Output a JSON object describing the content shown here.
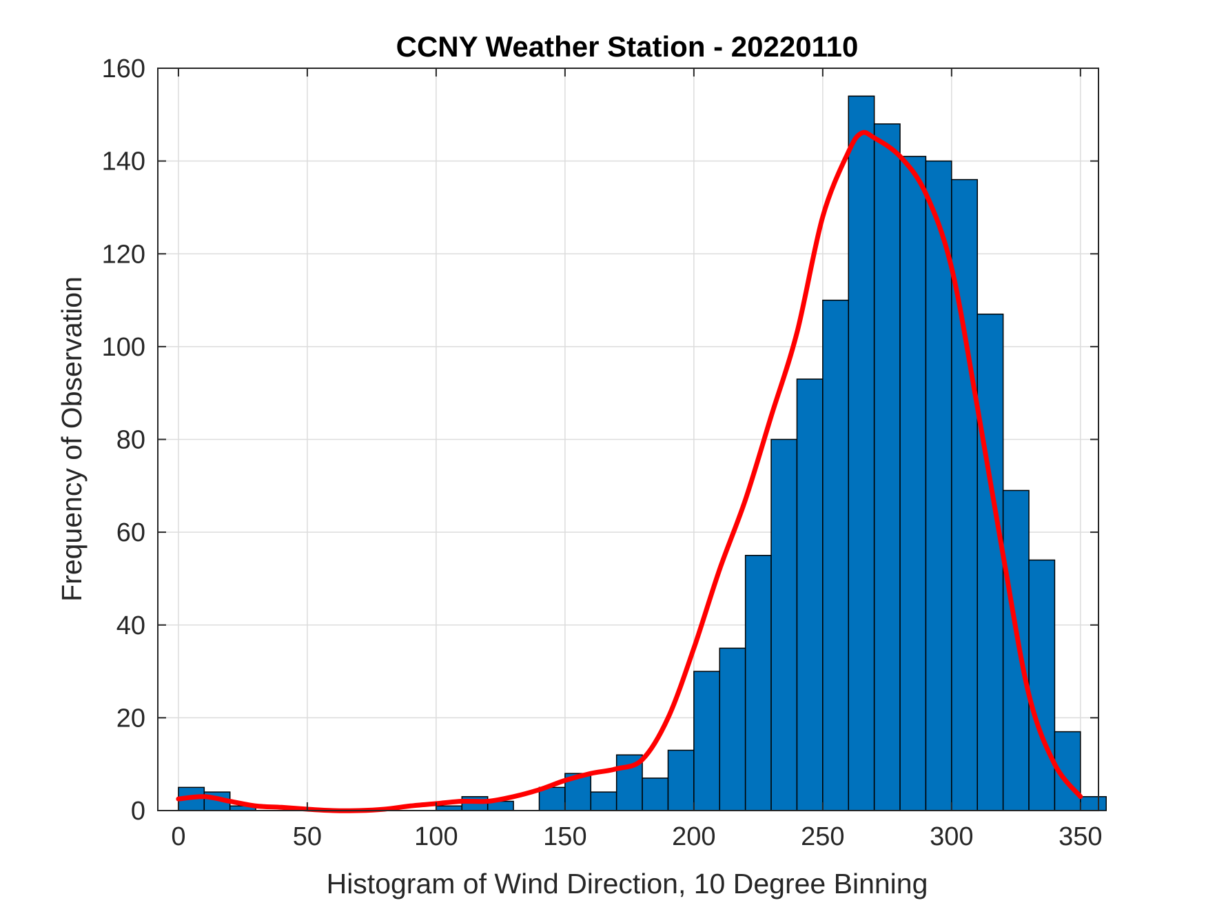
{
  "chart_data": {
    "type": "bar",
    "title": "CCNY Weather Station - 20220110",
    "xlabel": "Histogram of Wind Direction, 10 Degree Binning",
    "ylabel": "Frequency of Observation",
    "xlim": [
      -8,
      357
    ],
    "ylim": [
      0,
      160
    ],
    "xticks": [
      0,
      50,
      100,
      150,
      200,
      250,
      300,
      350
    ],
    "yticks": [
      0,
      20,
      40,
      60,
      80,
      100,
      120,
      140,
      160
    ],
    "grid": true,
    "bin_width": 10,
    "bins": [
      {
        "start": 0,
        "value": 5
      },
      {
        "start": 10,
        "value": 4
      },
      {
        "start": 20,
        "value": 1
      },
      {
        "start": 30,
        "value": 0
      },
      {
        "start": 40,
        "value": 0
      },
      {
        "start": 50,
        "value": 0
      },
      {
        "start": 60,
        "value": 0
      },
      {
        "start": 70,
        "value": 0
      },
      {
        "start": 80,
        "value": 0
      },
      {
        "start": 90,
        "value": 0
      },
      {
        "start": 100,
        "value": 1
      },
      {
        "start": 110,
        "value": 3
      },
      {
        "start": 120,
        "value": 2
      },
      {
        "start": 130,
        "value": 0
      },
      {
        "start": 140,
        "value": 5
      },
      {
        "start": 150,
        "value": 8
      },
      {
        "start": 160,
        "value": 4
      },
      {
        "start": 170,
        "value": 12
      },
      {
        "start": 180,
        "value": 7
      },
      {
        "start": 190,
        "value": 13
      },
      {
        "start": 200,
        "value": 30
      },
      {
        "start": 210,
        "value": 35
      },
      {
        "start": 220,
        "value": 55
      },
      {
        "start": 230,
        "value": 80
      },
      {
        "start": 240,
        "value": 93
      },
      {
        "start": 250,
        "value": 110
      },
      {
        "start": 260,
        "value": 154
      },
      {
        "start": 270,
        "value": 148
      },
      {
        "start": 280,
        "value": 141
      },
      {
        "start": 290,
        "value": 140
      },
      {
        "start": 300,
        "value": 136
      },
      {
        "start": 310,
        "value": 107
      },
      {
        "start": 320,
        "value": 69
      },
      {
        "start": 330,
        "value": 54
      },
      {
        "start": 340,
        "value": 17
      },
      {
        "start": 350,
        "value": 3
      }
    ],
    "bar_color": "#0072BD",
    "fit_curve": {
      "color": "#FF0000",
      "x": [
        0,
        10,
        20,
        30,
        40,
        50,
        60,
        70,
        80,
        90,
        100,
        110,
        120,
        130,
        140,
        150,
        160,
        170,
        180,
        190,
        200,
        210,
        220,
        230,
        240,
        250,
        260,
        265,
        270,
        280,
        290,
        300,
        310,
        320,
        330,
        340,
        350
      ],
      "y": [
        2.5,
        3,
        2,
        1,
        0.7,
        0.3,
        0,
        0,
        0.3,
        1,
        1.5,
        2,
        2,
        3,
        4.5,
        6.5,
        8,
        9,
        11,
        20,
        35,
        52,
        67,
        85,
        103,
        128,
        142,
        146,
        145,
        141,
        133,
        117,
        87,
        55,
        25,
        10,
        3
      ]
    }
  }
}
